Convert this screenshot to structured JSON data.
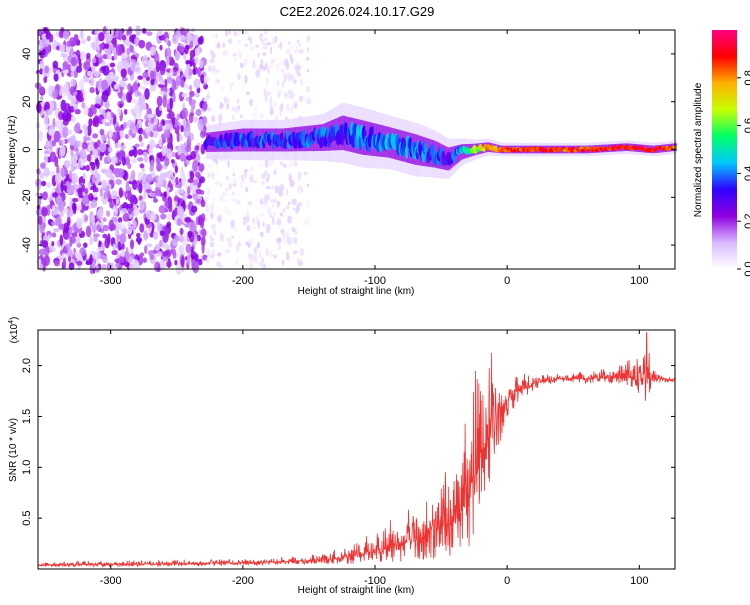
{
  "title": "C2E2.2026.024.10.17.G29",
  "chart_data": [
    {
      "type": "heatmap",
      "name": "spectrogram",
      "xlabel": "Height of straight line (km)",
      "ylabel": "Frequency (Hz)",
      "xlim": [
        -355,
        127
      ],
      "ylim": [
        -50,
        50
      ],
      "xticks": [
        -300,
        -200,
        -100,
        0,
        100
      ],
      "yticks": [
        -40,
        -20,
        0,
        20,
        40
      ],
      "colorbar": {
        "label": "Normalized spectral amplitude",
        "range": [
          0,
          1
        ],
        "ticks": [
          0.0,
          0.2,
          0.4,
          0.6,
          0.8
        ],
        "colors": [
          "#ffffff",
          "#d8b8ff",
          "#9000e0",
          "#3000ff",
          "#00c8ff",
          "#00ff66",
          "#c8ff00",
          "#ffb000",
          "#ff0000",
          "#ff0080"
        ]
      },
      "noise_region": {
        "x": [
          -355,
          -228
        ],
        "density": "high",
        "amplitude": [
          0.05,
          0.25
        ]
      },
      "faint_region": {
        "x": [
          -228,
          -150
        ],
        "amplitude": [
          0.0,
          0.1
        ]
      },
      "track_profile": {
        "x": [
          -228,
          -200,
          -170,
          -140,
          -125,
          -110,
          -90,
          -70,
          -55,
          -45,
          -35,
          -25,
          -15,
          -5,
          10,
          30,
          60,
          90,
          110,
          127
        ],
        "freq": [
          3,
          4,
          4,
          5,
          7,
          5,
          3,
          0,
          -2,
          -4,
          -1,
          0,
          1,
          0,
          0,
          0,
          0,
          1,
          0,
          1
        ],
        "width": [
          5,
          6,
          6,
          7,
          9,
          9,
          8,
          8,
          7,
          6,
          4,
          3,
          2.5,
          2,
          2,
          2,
          2,
          2,
          2,
          2
        ],
        "amplitude": [
          0.3,
          0.35,
          0.35,
          0.35,
          0.35,
          0.4,
          0.4,
          0.4,
          0.35,
          0.3,
          0.4,
          0.6,
          0.75,
          0.8,
          0.85,
          0.88,
          0.85,
          0.9,
          0.9,
          0.85
        ]
      }
    },
    {
      "type": "line",
      "name": "snr",
      "xlabel": "Height of straight line (km)",
      "ylabel": "SNR (10 * v/v)",
      "multiplier_label": "(x10",
      "multiplier_exp": "4",
      "multiplier_close": ")",
      "xlim": [
        -355,
        127
      ],
      "ylim": [
        0,
        2.35
      ],
      "xticks": [
        -300,
        -200,
        -100,
        0,
        100
      ],
      "yticks": [
        0.5,
        1.0,
        1.5,
        2.0
      ],
      "color": "#ee3333",
      "envelope": {
        "x": [
          -355,
          -250,
          -200,
          -150,
          -120,
          -100,
          -80,
          -60,
          -45,
          -35,
          -30,
          -25,
          -20,
          -15,
          -10,
          -5,
          0,
          10,
          20,
          30,
          40,
          60,
          80,
          95,
          100,
          105,
          110,
          127
        ],
        "y": [
          0.04,
          0.05,
          0.06,
          0.08,
          0.12,
          0.18,
          0.25,
          0.33,
          0.45,
          0.55,
          0.75,
          0.9,
          1.1,
          1.3,
          1.45,
          1.55,
          1.65,
          1.75,
          1.82,
          1.85,
          1.87,
          1.87,
          1.88,
          1.88,
          1.9,
          1.88,
          1.87,
          1.86
        ]
      },
      "spread": {
        "x": [
          -355,
          -150,
          -120,
          -100,
          -80,
          -60,
          -45,
          -35,
          -25,
          -15,
          -5,
          0,
          10,
          25,
          40,
          80,
          95,
          105,
          110,
          127
        ],
        "y": [
          0.02,
          0.03,
          0.08,
          0.12,
          0.18,
          0.25,
          0.35,
          0.5,
          0.6,
          0.55,
          0.3,
          0.15,
          0.1,
          0.04,
          0.03,
          0.06,
          0.12,
          0.3,
          0.05,
          0.02
        ]
      }
    }
  ]
}
